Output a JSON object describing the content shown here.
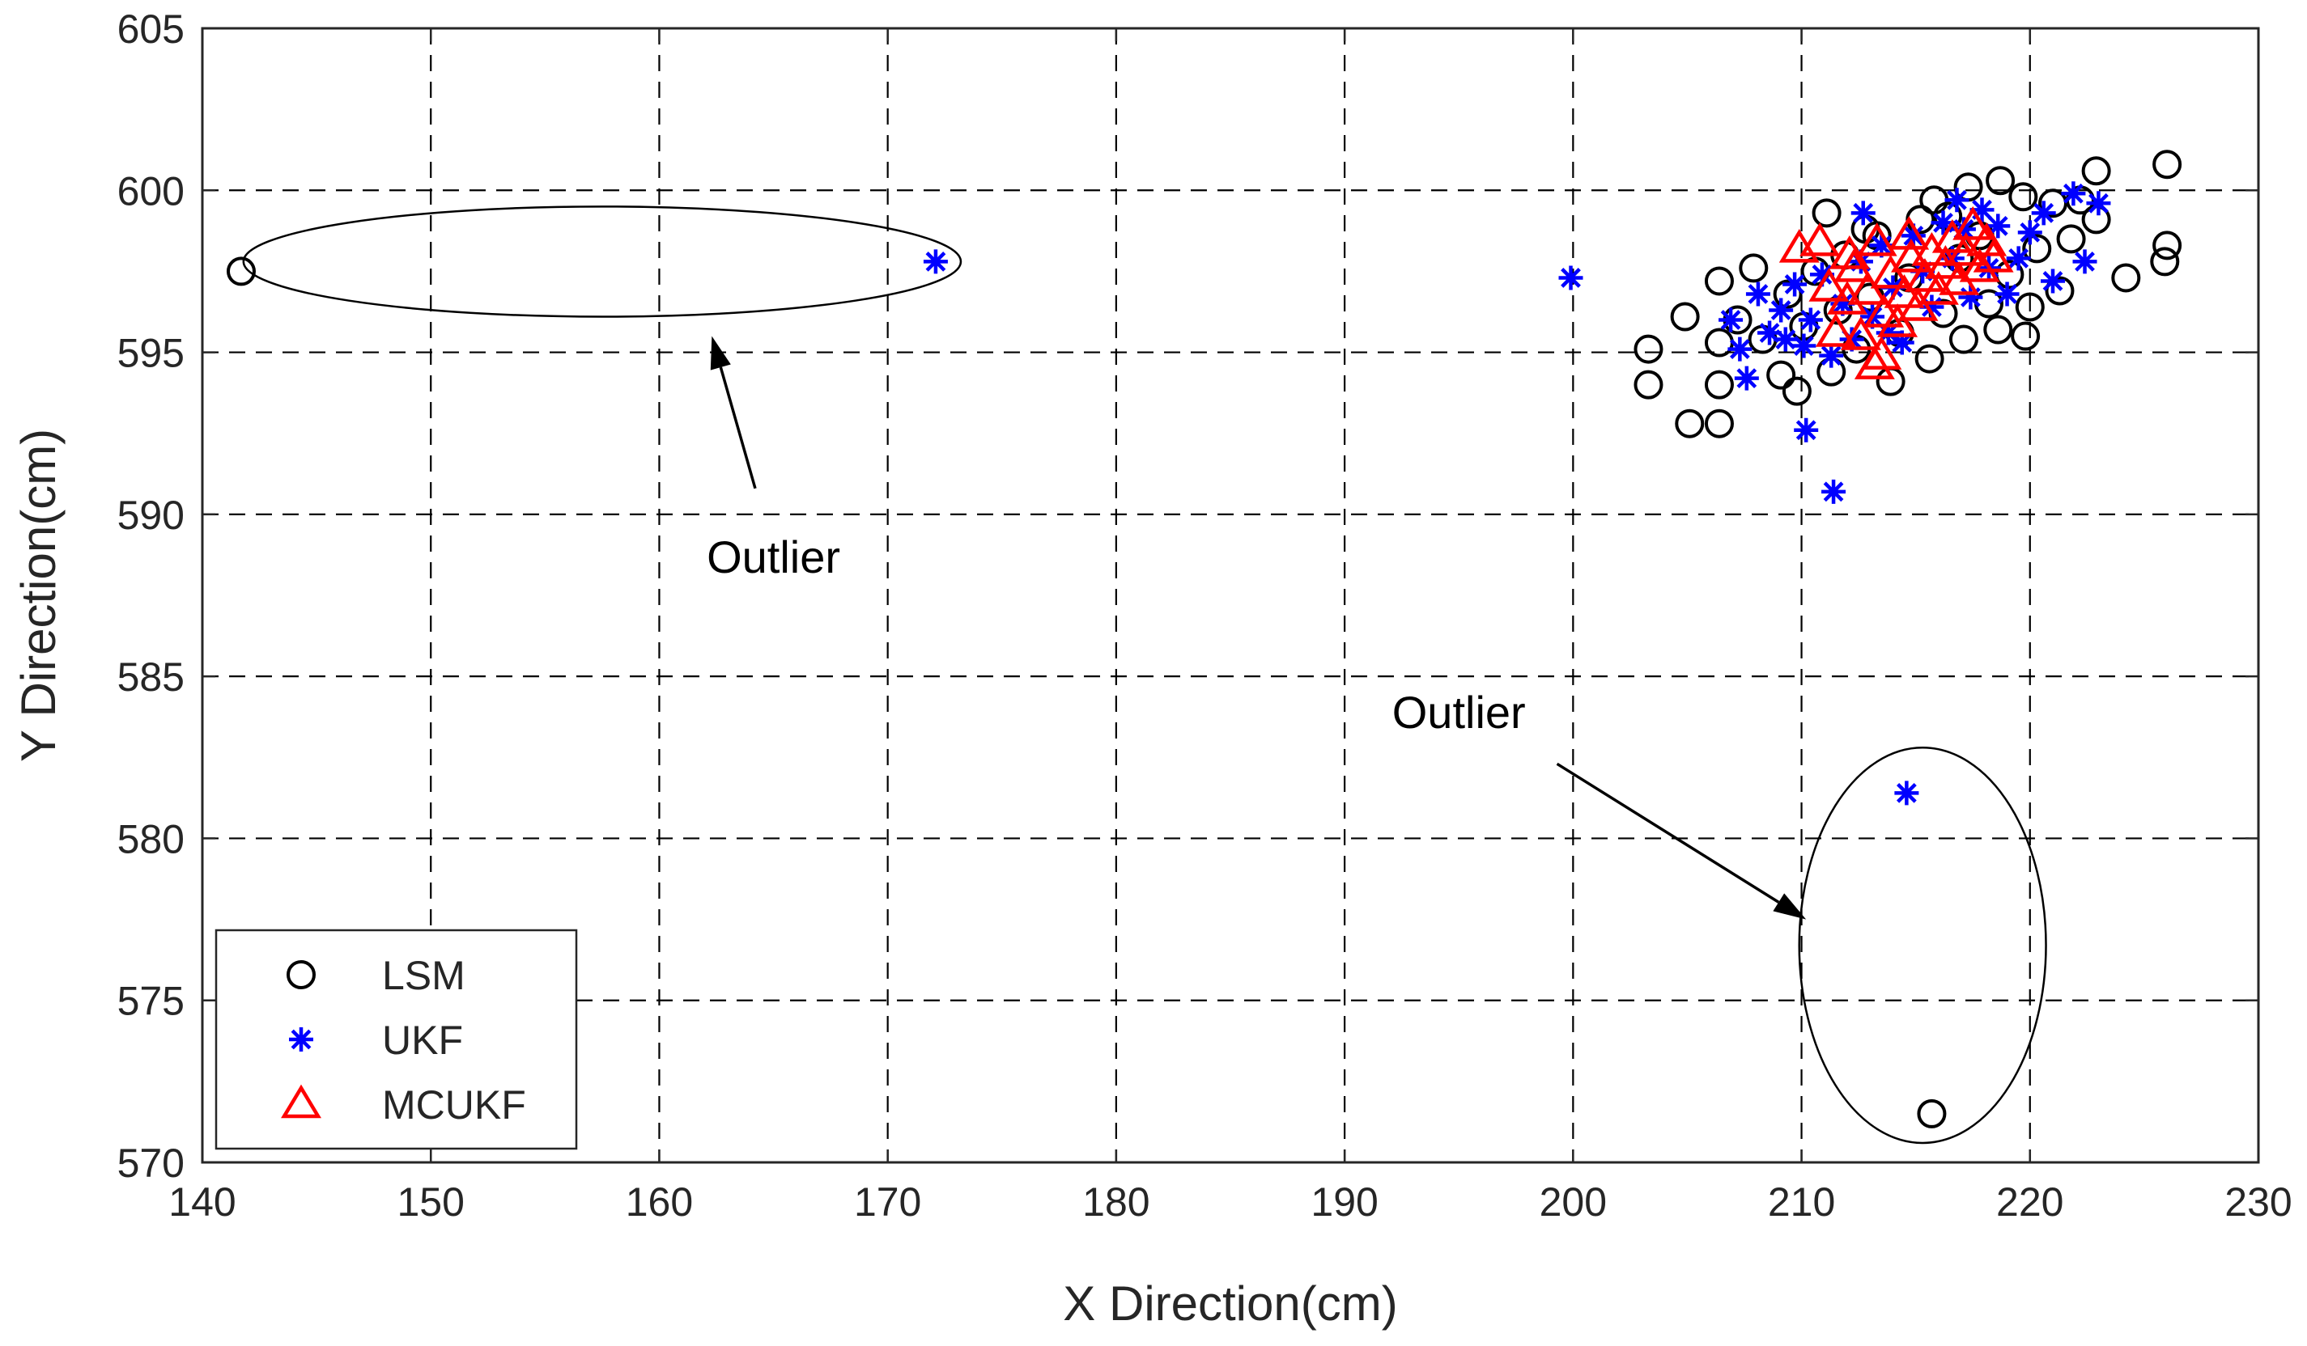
{
  "chart_data": {
    "type": "scatter",
    "xlabel": "X Direction(cm)",
    "ylabel": "Y Direction(cm)",
    "xlim": [
      140,
      230
    ],
    "ylim": [
      570,
      605
    ],
    "xticks": [
      140,
      150,
      160,
      170,
      180,
      190,
      200,
      210,
      220,
      230
    ],
    "yticks": [
      570,
      575,
      580,
      585,
      590,
      595,
      600,
      605
    ],
    "grid": true,
    "grid_style": "dashed",
    "legend_position": "bottom-left",
    "colors": {
      "LSM": "#000000",
      "UKF": "#0000ff",
      "MCUKF": "#ff0000"
    },
    "series": [
      {
        "name": "LSM",
        "marker": "circle",
        "points": [
          [
            141.7,
            597.5
          ],
          [
            215.7,
            571.5
          ],
          [
            203.3,
            595.1
          ],
          [
            203.3,
            594.0
          ],
          [
            204.9,
            596.1
          ],
          [
            205.1,
            592.8
          ],
          [
            206.4,
            592.8
          ],
          [
            206.4,
            594.0
          ],
          [
            206.4,
            595.3
          ],
          [
            206.4,
            597.2
          ],
          [
            207.2,
            596.0
          ],
          [
            207.9,
            597.6
          ],
          [
            208.3,
            595.4
          ],
          [
            209.1,
            594.3
          ],
          [
            209.4,
            596.8
          ],
          [
            209.8,
            593.8
          ],
          [
            210.1,
            595.8
          ],
          [
            210.6,
            597.5
          ],
          [
            211.1,
            599.3
          ],
          [
            211.3,
            594.4
          ],
          [
            211.6,
            596.3
          ],
          [
            211.9,
            598.0
          ],
          [
            212.4,
            595.1
          ],
          [
            213.0,
            596.7
          ],
          [
            213.3,
            598.6
          ],
          [
            213.9,
            594.1
          ],
          [
            214.3,
            595.6
          ],
          [
            214.7,
            597.3
          ],
          [
            215.2,
            599.1
          ],
          [
            215.6,
            594.8
          ],
          [
            215.8,
            599.7
          ],
          [
            216.2,
            596.2
          ],
          [
            216.9,
            597.9
          ],
          [
            217.1,
            595.4
          ],
          [
            217.3,
            600.1
          ],
          [
            217.8,
            598.6
          ],
          [
            218.2,
            596.5
          ],
          [
            218.6,
            595.7
          ],
          [
            218.7,
            600.3
          ],
          [
            219.1,
            597.4
          ],
          [
            219.7,
            599.8
          ],
          [
            219.8,
            595.5
          ],
          [
            220.0,
            596.4
          ],
          [
            220.3,
            598.2
          ],
          [
            221.0,
            599.6
          ],
          [
            221.3,
            596.9
          ],
          [
            221.8,
            598.5
          ],
          [
            222.2,
            599.7
          ],
          [
            222.9,
            599.1
          ],
          [
            222.9,
            600.6
          ],
          [
            224.2,
            597.3
          ],
          [
            225.9,
            597.8
          ],
          [
            226.0,
            598.3
          ],
          [
            226.0,
            600.8
          ],
          [
            212.8,
            598.8
          ],
          [
            216.4,
            599.2
          ]
        ]
      },
      {
        "name": "UKF",
        "marker": "asterisk",
        "points": [
          [
            172.1,
            597.8
          ],
          [
            199.9,
            597.3
          ],
          [
            210.2,
            592.6
          ],
          [
            211.4,
            590.7
          ],
          [
            214.6,
            581.4
          ],
          [
            206.9,
            596.0
          ],
          [
            207.3,
            595.1
          ],
          [
            207.6,
            594.2
          ],
          [
            208.1,
            596.8
          ],
          [
            208.6,
            595.6
          ],
          [
            209.1,
            596.3
          ],
          [
            209.7,
            597.1
          ],
          [
            210.1,
            595.2
          ],
          [
            210.4,
            596.0
          ],
          [
            210.9,
            597.4
          ],
          [
            211.3,
            594.9
          ],
          [
            211.8,
            596.5
          ],
          [
            212.2,
            595.4
          ],
          [
            212.6,
            597.8
          ],
          [
            213.1,
            596.1
          ],
          [
            213.5,
            598.3
          ],
          [
            214.0,
            597.0
          ],
          [
            214.4,
            595.3
          ],
          [
            214.9,
            598.6
          ],
          [
            215.3,
            597.5
          ],
          [
            215.7,
            596.4
          ],
          [
            216.2,
            599.0
          ],
          [
            216.6,
            597.9
          ],
          [
            217.1,
            598.8
          ],
          [
            217.4,
            596.7
          ],
          [
            217.9,
            599.4
          ],
          [
            218.2,
            597.6
          ],
          [
            218.6,
            598.9
          ],
          [
            219.0,
            596.8
          ],
          [
            219.5,
            597.9
          ],
          [
            220.0,
            598.7
          ],
          [
            220.6,
            599.3
          ],
          [
            221.0,
            597.2
          ],
          [
            221.9,
            599.9
          ],
          [
            222.4,
            597.8
          ],
          [
            223.0,
            599.6
          ],
          [
            212.7,
            599.3
          ],
          [
            209.3,
            595.4
          ],
          [
            213.8,
            595.6
          ],
          [
            216.8,
            599.7
          ]
        ]
      },
      {
        "name": "MCUKF",
        "marker": "triangle",
        "points": [
          [
            209.9,
            598.2
          ],
          [
            210.8,
            598.4
          ],
          [
            211.2,
            597.0
          ],
          [
            211.5,
            595.6
          ],
          [
            212.0,
            596.6
          ],
          [
            212.3,
            597.6
          ],
          [
            212.6,
            595.5
          ],
          [
            212.9,
            596.9
          ],
          [
            213.2,
            594.6
          ],
          [
            213.3,
            598.4
          ],
          [
            213.6,
            596.2
          ],
          [
            213.9,
            597.4
          ],
          [
            214.2,
            595.9
          ],
          [
            214.5,
            596.8
          ],
          [
            214.8,
            597.9
          ],
          [
            215.1,
            596.4
          ],
          [
            215.4,
            597.3
          ],
          [
            215.7,
            598.1
          ],
          [
            216.0,
            596.9
          ],
          [
            216.3,
            597.7
          ],
          [
            216.6,
            598.5
          ],
          [
            216.9,
            597.2
          ],
          [
            217.2,
            598.1
          ],
          [
            217.5,
            598.9
          ],
          [
            217.8,
            597.6
          ],
          [
            218.1,
            598.4
          ],
          [
            218.4,
            597.9
          ],
          [
            212.1,
            598.0
          ],
          [
            213.5,
            594.9
          ],
          [
            214.7,
            598.6
          ]
        ]
      }
    ],
    "annotations": [
      {
        "text": "Outlier",
        "x": 165.0,
        "y": 588.2,
        "ha": "middle",
        "arrow_to": [
          162.3,
          595.5
        ],
        "arrow_from": [
          164.2,
          590.8
        ]
      },
      {
        "text": "Outlier",
        "x": 195.0,
        "y": 583.4,
        "ha": "middle",
        "arrow_to": [
          210.2,
          577.5
        ],
        "arrow_from": [
          199.3,
          582.3
        ]
      }
    ],
    "ellipses": [
      {
        "cx": 157.5,
        "cy": 597.8,
        "rx": 15.7,
        "ry": 1.7
      },
      {
        "cx": 215.3,
        "cy": 576.7,
        "rx": 5.4,
        "ry": 6.1
      }
    ]
  }
}
